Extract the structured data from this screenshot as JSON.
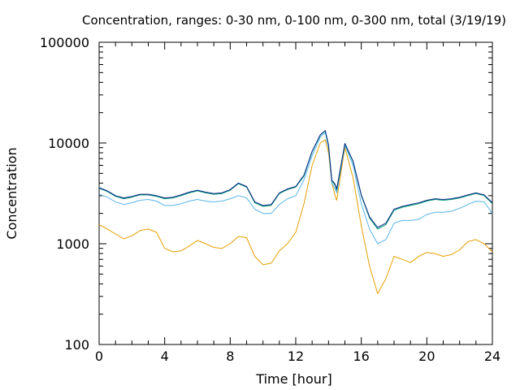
{
  "chart_data": {
    "type": "line",
    "title": "Concentration, ranges: 0-30 nm, 0-100 nm, 0-300 nm, total (3/19/19)",
    "xlabel": "Time [hour]",
    "ylabel": "Concentration",
    "xlim": [
      0,
      24
    ],
    "ylim": [
      100,
      100000
    ],
    "yscale": "log",
    "grid": false,
    "xticks": [
      0,
      4,
      8,
      12,
      16,
      20,
      24
    ],
    "xtick_labels": [
      "0",
      "4",
      "8",
      "12",
      "16",
      "20",
      "24"
    ],
    "yticks": [
      100,
      1000,
      10000,
      100000
    ],
    "ytick_labels": [
      "100",
      "1000",
      "10000",
      "100000"
    ],
    "series": [
      {
        "color": "#e69f00",
        "x": [
          0,
          0.5,
          1,
          1.5,
          2,
          2.5,
          3,
          3.5,
          4,
          4.5,
          5,
          5.5,
          6,
          6.5,
          7,
          7.5,
          8,
          8.5,
          9,
          9.5,
          10,
          10.5,
          11,
          11.5,
          12,
          12.5,
          13,
          13.5,
          13.8,
          14,
          14.2,
          14.4,
          14.5,
          15,
          15.5,
          16,
          16.5,
          17,
          17.5,
          18,
          18.5,
          19,
          19.5,
          20,
          20.5,
          21,
          21.5,
          22,
          22.5,
          23,
          23.5,
          24
        ],
        "y": [
          1550,
          1400,
          1250,
          1120,
          1200,
          1350,
          1400,
          1300,
          900,
          830,
          850,
          950,
          1080,
          1000,
          920,
          900,
          1000,
          1180,
          1150,
          750,
          620,
          640,
          850,
          1000,
          1300,
          2500,
          6000,
          10000,
          10800,
          8000,
          4000,
          3000,
          2700,
          9000,
          4500,
          1500,
          600,
          320,
          450,
          750,
          700,
          650,
          750,
          820,
          800,
          750,
          780,
          870,
          1050,
          1100,
          1000,
          830
        ]
      },
      {
        "color": "#56b4e9",
        "x": [
          0,
          0.5,
          1,
          1.5,
          2,
          2.5,
          3,
          3.5,
          4,
          4.5,
          5,
          5.5,
          6,
          6.5,
          7,
          7.5,
          8,
          8.5,
          9,
          9.5,
          10,
          10.5,
          11,
          11.5,
          12,
          12.5,
          13,
          13.5,
          13.8,
          14,
          14.2,
          14.4,
          14.5,
          15,
          15.5,
          16,
          16.5,
          17,
          17.5,
          18,
          18.5,
          19,
          19.5,
          20,
          20.5,
          21,
          21.5,
          22,
          22.5,
          23,
          23.5,
          24
        ],
        "y": [
          3100,
          2900,
          2600,
          2450,
          2550,
          2700,
          2750,
          2650,
          2400,
          2400,
          2500,
          2650,
          2750,
          2650,
          2600,
          2650,
          2800,
          3000,
          2850,
          2200,
          2000,
          2000,
          2450,
          2800,
          3000,
          4300,
          7500,
          11500,
          12700,
          9000,
          4000,
          3500,
          3200,
          9500,
          6000,
          2500,
          1400,
          1000,
          1100,
          1600,
          1700,
          1700,
          1750,
          1950,
          2050,
          2050,
          2100,
          2250,
          2450,
          2650,
          2600,
          2000
        ]
      },
      {
        "color": "#009e73",
        "x": [
          0,
          0.5,
          1,
          1.5,
          2,
          2.5,
          3,
          3.5,
          4,
          4.5,
          5,
          5.5,
          6,
          6.5,
          7,
          7.5,
          8,
          8.5,
          9,
          9.5,
          10,
          10.5,
          11,
          11.5,
          12,
          12.5,
          13,
          13.5,
          13.8,
          14,
          14.2,
          14.4,
          14.5,
          15,
          15.5,
          16,
          16.5,
          17,
          17.5,
          18,
          18.5,
          19,
          19.5,
          20,
          20.5,
          21,
          21.5,
          22,
          22.5,
          23,
          23.5,
          24
        ],
        "y": [
          3550,
          3300,
          2950,
          2800,
          2900,
          3050,
          3050,
          2950,
          2800,
          2850,
          3000,
          3200,
          3350,
          3200,
          3100,
          3150,
          3400,
          3950,
          3650,
          2550,
          2350,
          2400,
          3150,
          3450,
          3650,
          4700,
          8200,
          12000,
          13200,
          9500,
          4200,
          3800,
          3400,
          9800,
          6500,
          3000,
          1800,
          1400,
          1550,
          2150,
          2300,
          2400,
          2500,
          2650,
          2750,
          2700,
          2750,
          2850,
          3000,
          3150,
          3000,
          2500
        ]
      },
      {
        "color": "#0b2a8a",
        "x": [
          0,
          0.5,
          1,
          1.5,
          2,
          2.5,
          3,
          3.5,
          4,
          4.5,
          5,
          5.5,
          6,
          6.5,
          7,
          7.5,
          8,
          8.5,
          9,
          9.5,
          10,
          10.5,
          11,
          11.5,
          12,
          12.5,
          13,
          13.5,
          13.8,
          14,
          14.2,
          14.4,
          14.5,
          15,
          15.5,
          16,
          16.5,
          17,
          17.5,
          18,
          18.5,
          19,
          19.5,
          20,
          20.5,
          21,
          21.5,
          22,
          22.5,
          23,
          23.5,
          24
        ],
        "y": [
          3600,
          3350,
          3000,
          2850,
          2950,
          3100,
          3100,
          3000,
          2850,
          2900,
          3050,
          3250,
          3400,
          3250,
          3150,
          3200,
          3450,
          4000,
          3700,
          2600,
          2400,
          2450,
          3200,
          3500,
          3700,
          4800,
          8300,
          12100,
          13300,
          9600,
          4300,
          3900,
          3500,
          9900,
          6600,
          3050,
          1850,
          1450,
          1600,
          2200,
          2350,
          2450,
          2550,
          2700,
          2800,
          2750,
          2800,
          2900,
          3050,
          3200,
          3050,
          2550
        ]
      }
    ]
  }
}
